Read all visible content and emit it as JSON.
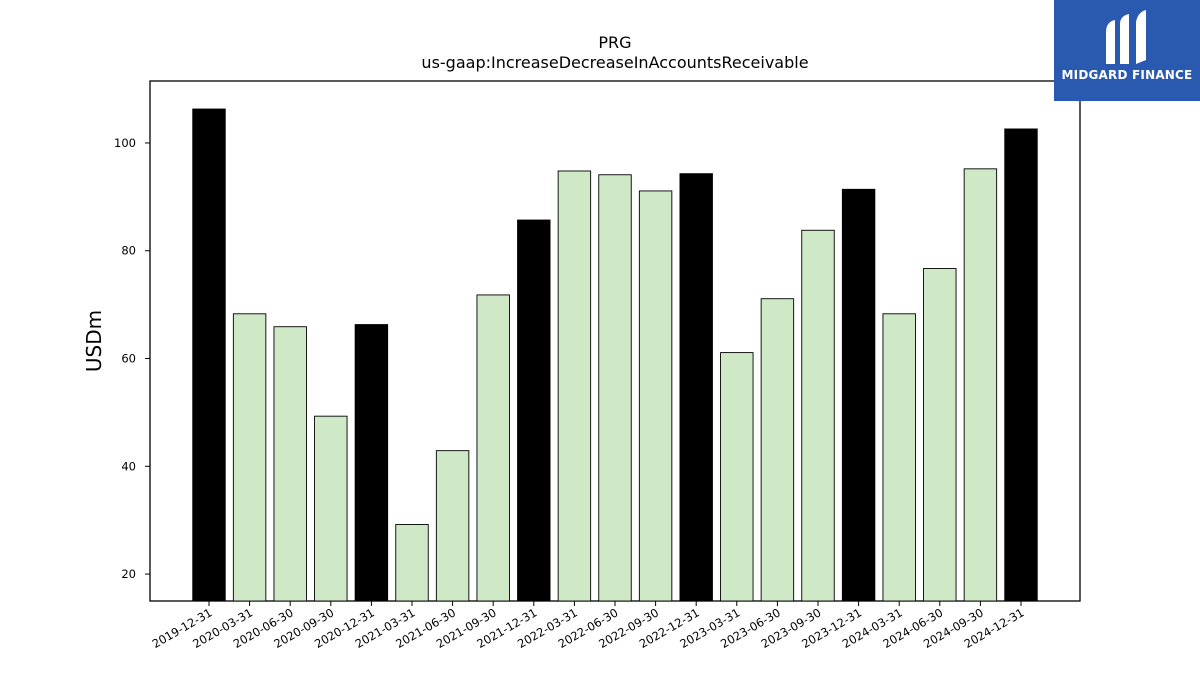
{
  "brand": {
    "name": "MIDGARD FINANCE",
    "bg_color": "#2a5ab0",
    "icon": "midgard-logo-icon"
  },
  "chart_data": {
    "type": "bar",
    "title": "PRG",
    "subtitle": "us-gaap:IncreaseDecreaseInAccountsReceivable",
    "xlabel": "",
    "ylabel": "USDm",
    "ylim": [
      15,
      111.5
    ],
    "yticks": [
      20,
      40,
      60,
      80,
      100
    ],
    "grid": false,
    "categories": [
      "2019-12-31",
      "2020-03-31",
      "2020-06-30",
      "2020-09-30",
      "2020-12-31",
      "2021-03-31",
      "2021-06-30",
      "2021-09-30",
      "2021-12-31",
      "2022-03-31",
      "2022-06-30",
      "2022-09-30",
      "2022-12-31",
      "2023-03-31",
      "2023-06-30",
      "2023-09-30",
      "2023-12-31",
      "2024-03-31",
      "2024-06-30",
      "2024-09-30",
      "2024-12-31"
    ],
    "values": [
      106.3,
      68.3,
      65.9,
      49.3,
      66.3,
      29.2,
      42.9,
      71.8,
      85.7,
      94.8,
      94.1,
      91.1,
      94.3,
      61.1,
      71.1,
      83.8,
      91.4,
      68.3,
      76.7,
      95.2,
      102.6
    ],
    "bar_types": [
      "annual",
      "quarter",
      "quarter",
      "quarter",
      "annual",
      "quarter",
      "quarter",
      "quarter",
      "annual",
      "quarter",
      "quarter",
      "quarter",
      "annual",
      "quarter",
      "quarter",
      "quarter",
      "annual",
      "quarter",
      "quarter",
      "quarter",
      "annual"
    ],
    "colors": {
      "annual": "#000000",
      "quarter": "#cfe9c7",
      "edge": "#000000"
    }
  }
}
